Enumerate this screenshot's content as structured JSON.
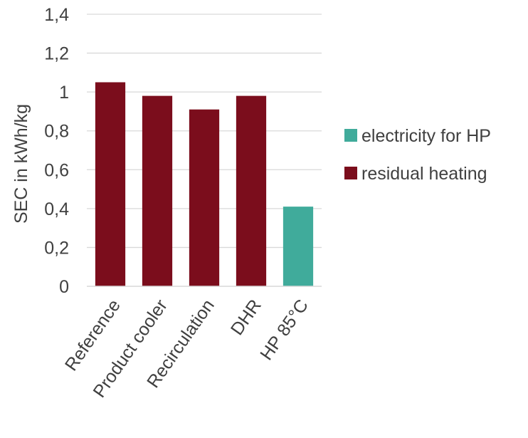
{
  "chart_data": {
    "type": "bar",
    "title": "",
    "xlabel": "",
    "ylabel": "SEC in kWh/kg",
    "ylim": [
      0,
      1.4
    ],
    "yticks": [
      0,
      0.2,
      0.4,
      0.6,
      0.8,
      1,
      1.2,
      1.4
    ],
    "ytick_labels": [
      "0",
      "0,2",
      "0,4",
      "0,6",
      "0,8",
      "1",
      "1,2",
      "1,4"
    ],
    "categories": [
      "Reference",
      "Product cooler",
      "Recirculation",
      "DHR",
      "HP 85°C"
    ],
    "series": [
      {
        "name": "electricity for HP",
        "color": "#40ab9b",
        "values": [
          0,
          0,
          0,
          0,
          0.41
        ]
      },
      {
        "name": "residual heating",
        "color": "#7b0d1c",
        "values": [
          1.05,
          0.98,
          0.91,
          0.98,
          0
        ]
      }
    ],
    "grid": true,
    "legend_position": "right"
  }
}
